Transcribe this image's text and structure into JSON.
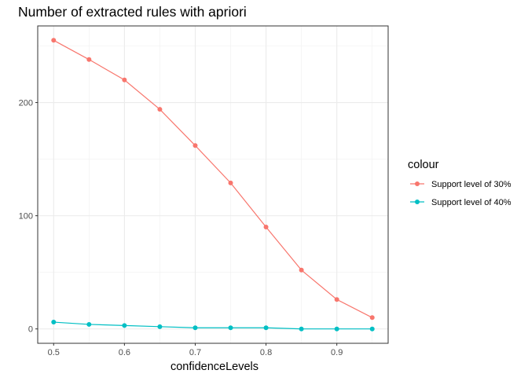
{
  "chart_data": {
    "type": "line",
    "title": "Number of extracted rules with apriori",
    "xlabel": "confidenceLevels",
    "ylabel": "",
    "x": [
      0.5,
      0.55,
      0.6,
      0.65,
      0.7,
      0.75,
      0.8,
      0.85,
      0.9,
      0.95
    ],
    "xlim": [
      0.4775,
      0.9725
    ],
    "ylim": [
      -12.7,
      267.7
    ],
    "x_ticks": [
      0.5,
      0.6,
      0.7,
      0.8,
      0.9
    ],
    "x_tick_labels": [
      "0.5",
      "0.6",
      "0.7",
      "0.8",
      "0.9"
    ],
    "y_ticks": [
      0,
      100,
      200
    ],
    "y_tick_labels": [
      "0",
      "100",
      "200"
    ],
    "grid": true,
    "legend": {
      "title": "colour",
      "placement": "right"
    },
    "series": [
      {
        "name": "Support level of 30%",
        "color": "#F8766D",
        "values": [
          255,
          238,
          220,
          194,
          162,
          129,
          90,
          52,
          26,
          10
        ]
      },
      {
        "name": "Support level of 40%",
        "color": "#00BFC4",
        "values": [
          6,
          4,
          3,
          2,
          1,
          1,
          1,
          0,
          0,
          0
        ]
      }
    ]
  }
}
